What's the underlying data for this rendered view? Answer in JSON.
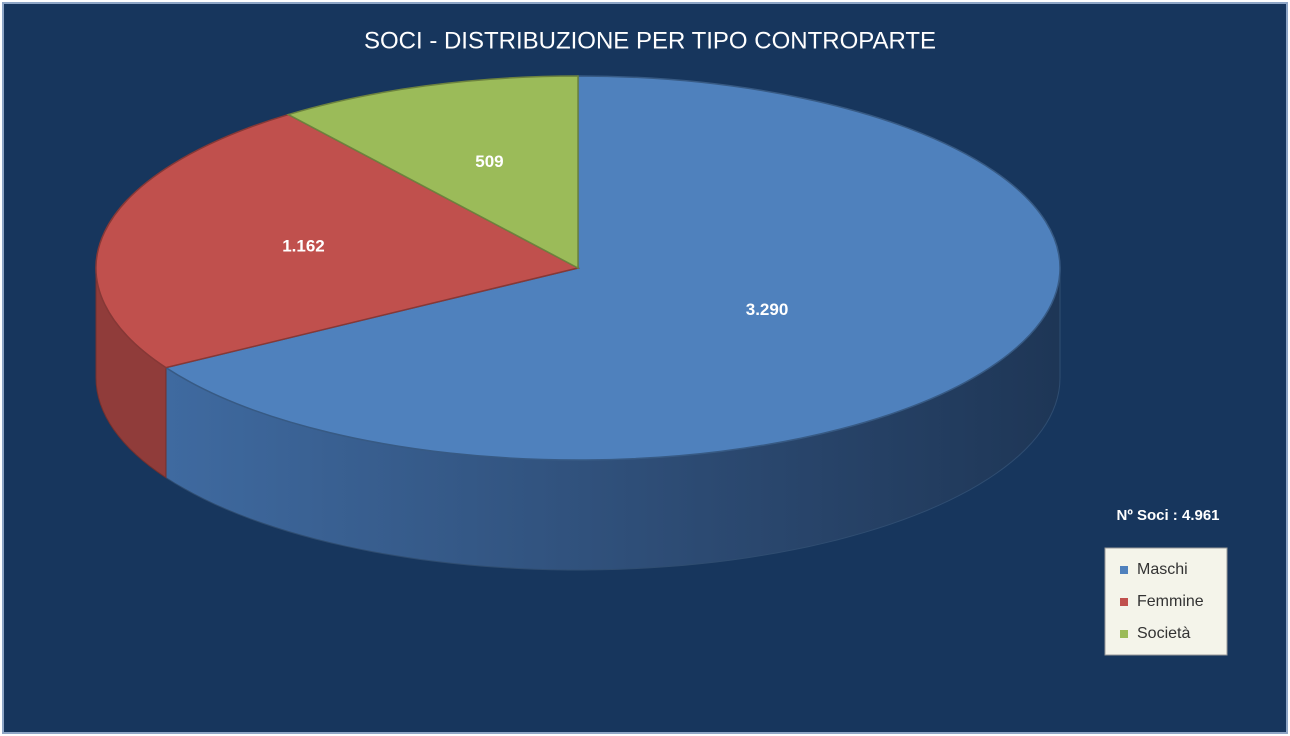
{
  "chart_data": {
    "type": "pie3d",
    "title": "SOCI - DISTRIBUZIONE PER TIPO CONTROPARTE",
    "categories": [
      "Maschi",
      "Femmine",
      "Società"
    ],
    "values": [
      3290,
      1162,
      509
    ],
    "value_labels": [
      "3.290",
      "1.162",
      "509"
    ],
    "colors": [
      "#4f81bd",
      "#c0504d",
      "#9bbb59"
    ],
    "annotation": "Nº Soci :  4.961",
    "legend": "right"
  }
}
